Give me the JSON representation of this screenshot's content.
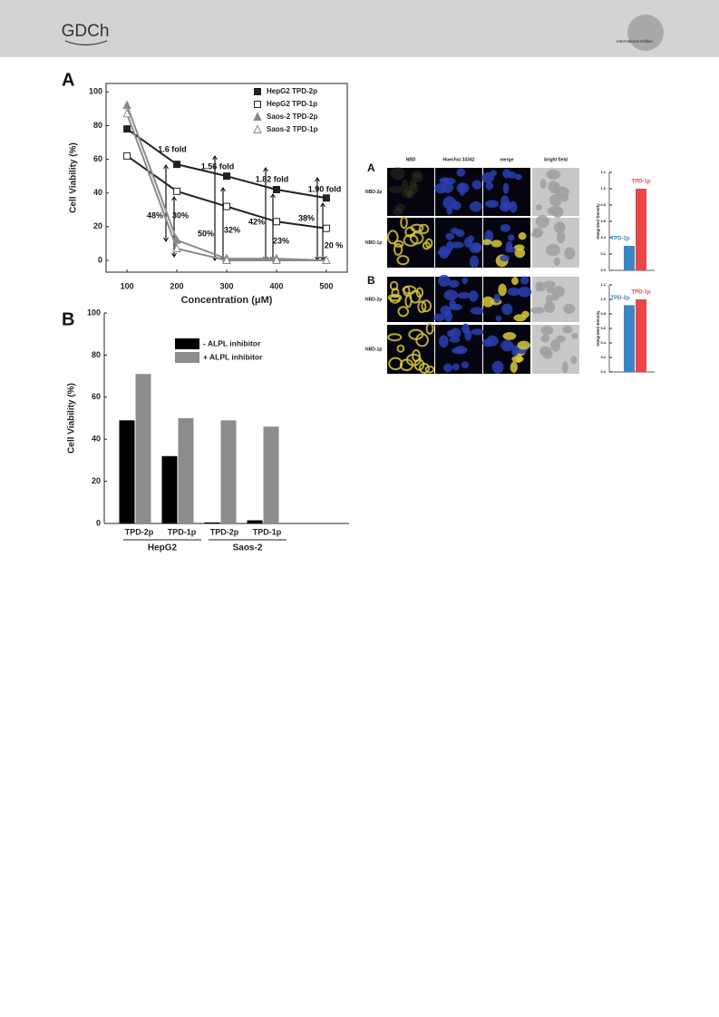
{
  "header": {
    "logo": "GDCh",
    "edition": "International Edition"
  },
  "figure": {
    "panels": [
      "A",
      "B"
    ],
    "columns": [
      "NBD",
      "Hoechst 33342",
      "merge",
      "bright field"
    ],
    "rows": [
      "NBD-2p",
      "NBD-1p",
      "NBD-2p",
      "NBD-1p"
    ]
  },
  "chart_data": [
    {
      "type": "line",
      "panel": "A",
      "x_label": "Concentration (μM)",
      "y_label": "Cell Viability (%)",
      "x": [
        100,
        200,
        300,
        400,
        500
      ],
      "series": [
        {
          "name": "HepG2 TPD-2p",
          "color": "#222222",
          "marker": "square",
          "values": [
            78,
            57,
            50,
            42,
            37
          ]
        },
        {
          "name": "HepG2 TPD-1p",
          "color": "#222222",
          "marker": "square-open",
          "values": [
            62,
            41,
            32,
            23,
            19
          ]
        },
        {
          "name": "Saos-2 TPD-2p",
          "color": "#8a8a8a",
          "marker": "triangle",
          "values": [
            92,
            12,
            1,
            1,
            0
          ]
        },
        {
          "name": "Saos-2 TPD-1p",
          "color": "#8a8a8a",
          "marker": "triangle-open",
          "values": [
            87,
            7,
            0,
            0,
            0
          ]
        }
      ],
      "xlim": [
        58,
        542
      ],
      "ylim": [
        -7,
        105
      ],
      "xticks": [
        100,
        200,
        300,
        400,
        500
      ],
      "yticks": [
        0,
        20,
        40,
        60,
        80,
        100
      ],
      "annotations": [
        "1.6 fold",
        "1.56 fold",
        "1.82 fold",
        "1.90 fold",
        "48%",
        "30%",
        "50%",
        "32%",
        "42%",
        "23%",
        "38%",
        "20 %"
      ]
    },
    {
      "type": "bar",
      "panel": "B",
      "y_label": "Cell Viability (%)",
      "categories": [
        "TPD-2p",
        "TPD-1p",
        "TPD-2p",
        "TPD-1p"
      ],
      "groups": [
        "HepG2",
        "Saos-2"
      ],
      "series": [
        {
          "name": "-  ALPL inhibitor",
          "color": "#000000",
          "values": [
            49,
            32,
            0.5,
            1.5
          ]
        },
        {
          "name": "+ ALPL inhibitor",
          "color": "#8c8c8c",
          "values": [
            71,
            50,
            49,
            46
          ]
        }
      ],
      "ylim": [
        0,
        100
      ],
      "yticks": [
        0,
        20,
        40,
        60,
        80,
        100
      ]
    },
    {
      "type": "mini-bar",
      "y_label": "Integrated Density",
      "categories": [
        "TPD-2p",
        "TPD-1p"
      ],
      "colors": [
        "#3a87c8",
        "#e8474a"
      ],
      "values": [
        0.3,
        1.0
      ],
      "ylim": [
        0,
        1.2
      ],
      "yticks": [
        {
          "value": 0,
          "label": "0.0"
        },
        0.2,
        0.4,
        0.6,
        0.8,
        {
          "value": 1,
          "label": "1.0"
        },
        1.2
      ]
    },
    {
      "type": "mini-bar",
      "y_label": "Integrated Density",
      "categories": [
        "TPD-2p",
        "TPD-1p"
      ],
      "colors": [
        "#3a87c8",
        "#e8474a"
      ],
      "values": [
        0.92,
        1.0
      ],
      "ylim": [
        0,
        1.2
      ],
      "yticks": [
        {
          "value": 0,
          "label": "0.0"
        },
        0.2,
        0.4,
        0.6,
        0.8,
        {
          "value": 1,
          "label": "1.0"
        },
        1.2
      ]
    }
  ]
}
